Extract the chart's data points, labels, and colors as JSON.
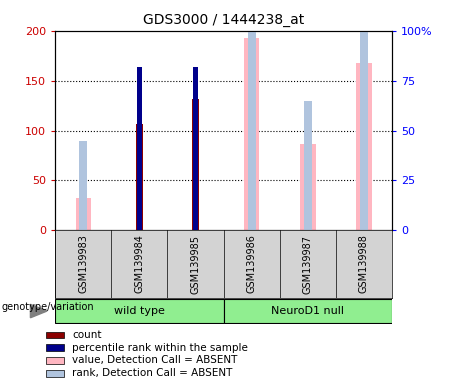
{
  "title": "GDS3000 / 1444238_at",
  "samples": [
    "GSM139983",
    "GSM139984",
    "GSM139985",
    "GSM139986",
    "GSM139987",
    "GSM139988"
  ],
  "group_labels": [
    "wild type",
    "NeuroD1 null"
  ],
  "count_values": [
    null,
    107,
    132,
    null,
    null,
    null
  ],
  "percentile_values": [
    null,
    82,
    82,
    null,
    null,
    null
  ],
  "absent_value": [
    32,
    null,
    null,
    193,
    87,
    168
  ],
  "absent_rank": [
    45,
    null,
    null,
    103,
    65,
    100
  ],
  "ylim_left": [
    0,
    200
  ],
  "ylim_right": [
    0,
    100
  ],
  "yticks_left": [
    0,
    50,
    100,
    150,
    200
  ],
  "yticks_right": [
    0,
    25,
    50,
    75,
    100
  ],
  "yticklabels_left": [
    "0",
    "50",
    "100",
    "150",
    "200"
  ],
  "yticklabels_right": [
    "0",
    "25",
    "50",
    "75",
    "100%"
  ],
  "color_count": "#8B0000",
  "color_percentile": "#00008B",
  "color_absent_value": "#FFB6C1",
  "color_absent_rank": "#B0C4DE",
  "xlabel": "genotype/variation",
  "legend_entries": [
    "count",
    "percentile rank within the sample",
    "value, Detection Call = ABSENT",
    "rank, Detection Call = ABSENT"
  ]
}
